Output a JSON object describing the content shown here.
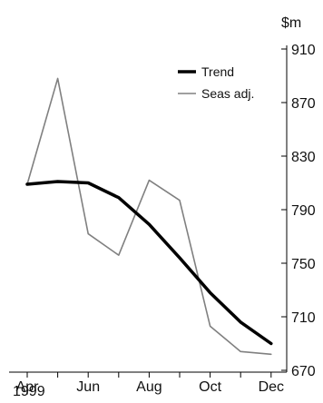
{
  "chart_data": {
    "type": "line",
    "y_unit": "$m",
    "year_label": "1999",
    "x": [
      "Apr 1999",
      "May 1999",
      "Jun 1999",
      "Jul 1999",
      "Aug 1999",
      "Sep 1999",
      "Oct 1999",
      "Nov 1999",
      "Dec 1999"
    ],
    "x_tick_labels": [
      "Apr",
      "Jun",
      "Aug",
      "Oct",
      "Dec"
    ],
    "y_ticks": [
      670,
      710,
      750,
      790,
      830,
      870,
      910
    ],
    "ylim": [
      670,
      910
    ],
    "y_axis_side": "right",
    "legend_position": "top-right",
    "grid": false,
    "series": [
      {
        "name": "Trend",
        "color": "#000000",
        "values": [
          809,
          811,
          810,
          799,
          779,
          754,
          728,
          706,
          690
        ]
      },
      {
        "name": "Seas adj.",
        "color": "#808080",
        "values": [
          809,
          888,
          772,
          756,
          812,
          797,
          703,
          684,
          682
        ]
      }
    ]
  }
}
